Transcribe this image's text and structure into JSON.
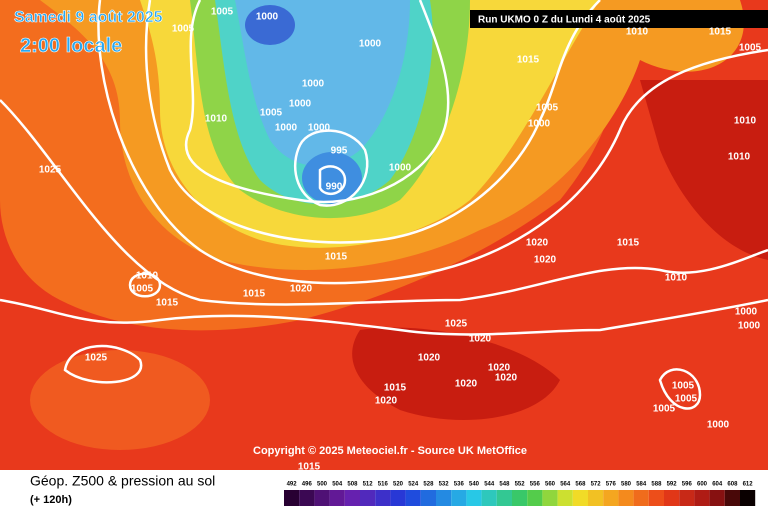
{
  "header": {
    "title": "Samedi 9 août 2025",
    "subtitle": "2:00 locale",
    "run_label": "Run UKMO 0 Z du Lundi 4 août 2025"
  },
  "copyright": "Copyright © 2025 Meteociel.fr - Source UK MetOffice",
  "footer": {
    "title": "Géop. Z500 & pression au sol",
    "subtitle": "(+ 120h)"
  },
  "isobar_labels": [
    1005,
    1000,
    1005,
    1000,
    1015,
    1005,
    1000,
    1010,
    1005,
    1000,
    1000,
    1000,
    1000,
    995,
    990,
    1000,
    1025,
    1010,
    1005,
    1015,
    1015,
    1020,
    1015,
    1020,
    1020,
    1015,
    1010,
    1025,
    1020,
    1020,
    1020,
    1020,
    1020,
    1015,
    1020,
    1025,
    1005,
    1005,
    1005,
    1000,
    1000,
    1000,
    1010,
    1010,
    1005,
    1010,
    1015,
    1015
  ],
  "color_scale": [
    492,
    496,
    500,
    504,
    508,
    512,
    516,
    520,
    524,
    528,
    532,
    536,
    540,
    544,
    548,
    552,
    556,
    560,
    564,
    568,
    572,
    576,
    580,
    584,
    588,
    592,
    596,
    600,
    604,
    608,
    612
  ]
}
